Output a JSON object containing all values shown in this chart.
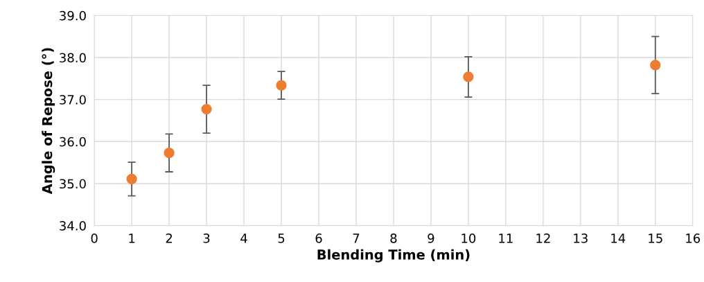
{
  "chart_data": {
    "type": "scatter",
    "xlabel": "Blending Time (min)",
    "ylabel": "Angle of Repose (°)",
    "x": [
      1,
      2,
      3,
      5,
      10,
      15
    ],
    "series": [
      {
        "color": "#ed7d31",
        "values": [
          35.11,
          35.73,
          36.77,
          37.34,
          37.54,
          37.82
        ],
        "errors": [
          0.4,
          0.45,
          0.57,
          0.33,
          0.48,
          0.68
        ]
      }
    ],
    "xlim": [
      0,
      16
    ],
    "xticks": [
      0,
      1,
      2,
      3,
      4,
      5,
      6,
      7,
      8,
      9,
      10,
      11,
      12,
      13,
      14,
      15,
      16
    ],
    "ylim": [
      34,
      39
    ],
    "yticks": [
      {
        "value": 34,
        "label": "34.0"
      },
      {
        "value": 35,
        "label": "35.0"
      },
      {
        "value": 36,
        "label": "36.0"
      },
      {
        "value": 37,
        "label": "37.0"
      },
      {
        "value": 38,
        "label": "38.0"
      },
      {
        "value": 39,
        "label": "39.0"
      }
    ],
    "grid": true,
    "marker": "circle"
  }
}
